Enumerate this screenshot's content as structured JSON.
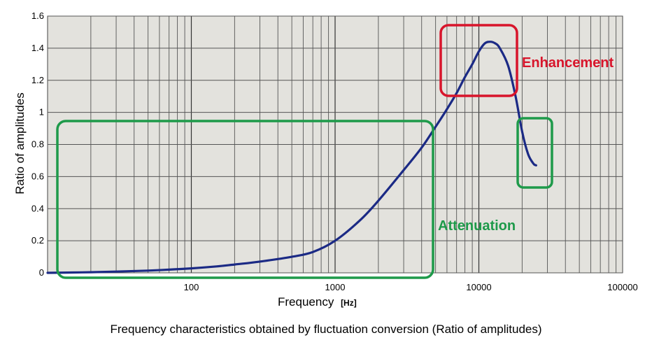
{
  "chart_data": {
    "type": "line",
    "caption": "Frequency characteristics obtained by fluctuation conversion (Ratio of amplitudes)",
    "xlabel": "Frequency",
    "xunit": "[Hz]",
    "ylabel": "Ratio of amplitudes",
    "xscale": "log",
    "xlim": [
      10,
      100000
    ],
    "ylim": [
      0,
      1.6
    ],
    "grid": true,
    "x_ticks": [
      "100",
      "1000",
      "10000",
      "100000"
    ],
    "y_ticks": [
      "0",
      "0.2",
      "0.4",
      "0.6",
      "0.8",
      "1",
      "1.2",
      "1.4",
      "1.6"
    ],
    "series": [
      {
        "color": "#1b2a85",
        "x": [
          10,
          15,
          20,
          30,
          50,
          70,
          100,
          150,
          200,
          300,
          500,
          700,
          1000,
          1500,
          2000,
          3000,
          4000,
          5000,
          6000,
          7000,
          8000,
          9000,
          10000,
          11000,
          12000,
          13000,
          14000,
          16000,
          18000,
          20000,
          22000,
          24000,
          25000
        ],
        "y": [
          0.0,
          0.002,
          0.004,
          0.008,
          0.014,
          0.02,
          0.028,
          0.04,
          0.052,
          0.07,
          0.1,
          0.13,
          0.2,
          0.33,
          0.45,
          0.64,
          0.78,
          0.91,
          1.02,
          1.12,
          1.22,
          1.3,
          1.38,
          1.43,
          1.44,
          1.43,
          1.4,
          1.29,
          1.1,
          0.88,
          0.74,
          0.68,
          0.67
        ]
      }
    ],
    "annotations": [
      {
        "label": "Enhancement",
        "color": "#d8152b"
      },
      {
        "label": "Attenuation",
        "color": "#1e9a4a"
      }
    ]
  }
}
